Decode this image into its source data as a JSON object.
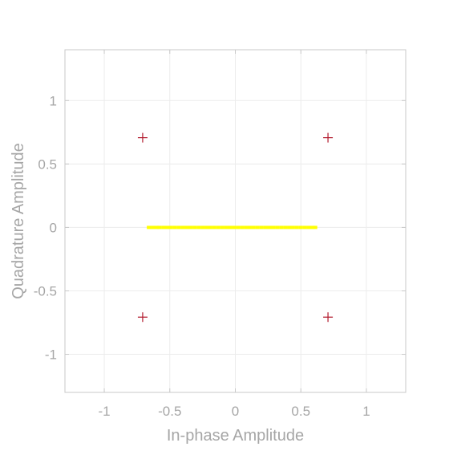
{
  "chart_data": {
    "type": "scatter",
    "title": "",
    "xlabel": "In-phase Amplitude",
    "ylabel": "Quadrature Amplitude",
    "xlim": [
      -1.3,
      1.3
    ],
    "ylim": [
      -1.3,
      1.4
    ],
    "xticks": [
      -1,
      -0.5,
      0,
      0.5,
      1
    ],
    "yticks": [
      -1,
      -0.5,
      0,
      0.5,
      1
    ],
    "xtick_labels": [
      "-1",
      "-0.5",
      "0",
      "0.5",
      "1"
    ],
    "ytick_labels": [
      "-1",
      "-0.5",
      "0",
      "0.5",
      "1"
    ],
    "grid": true,
    "series": [
      {
        "marker": "plus",
        "color": "#b2182b",
        "x": [
          -0.707,
          0.707,
          -0.707,
          0.707
        ],
        "y": [
          0.707,
          0.707,
          -0.707,
          -0.707
        ]
      },
      {
        "marker": "dot",
        "color": "#ffff00",
        "x": [
          -0.66,
          -0.63,
          -0.6,
          -0.58,
          -0.55,
          -0.52,
          -0.49,
          -0.46,
          -0.43,
          -0.4,
          -0.37,
          -0.34,
          -0.31,
          -0.28,
          -0.25,
          -0.22,
          -0.19,
          -0.16,
          -0.13,
          -0.1,
          -0.07,
          -0.04,
          -0.01,
          0.02,
          0.05,
          0.08,
          0.11,
          0.14,
          0.17,
          0.2,
          0.23,
          0.26,
          0.29,
          0.32,
          0.35,
          0.38,
          0.41,
          0.44,
          0.47,
          0.5,
          0.53,
          0.56,
          0.59,
          0.61
        ],
        "y": [
          0,
          0,
          0,
          0,
          0,
          0,
          0,
          0,
          0,
          0,
          0,
          0,
          0,
          0,
          0,
          0,
          0,
          0,
          0,
          0,
          0,
          0,
          0,
          0,
          0,
          0,
          0,
          0,
          0,
          0,
          0,
          0,
          0,
          0,
          0,
          0,
          0,
          0,
          0,
          0,
          0,
          0,
          0,
          0
        ]
      }
    ]
  }
}
